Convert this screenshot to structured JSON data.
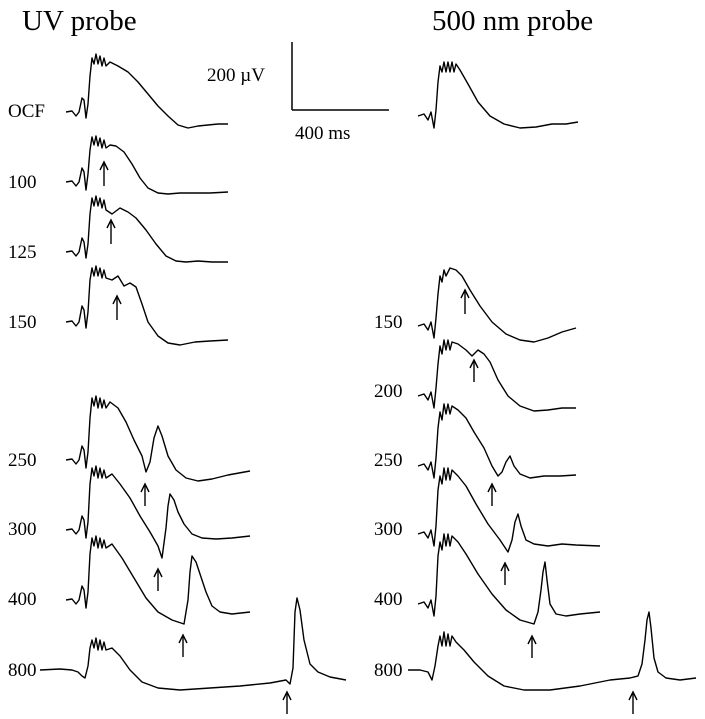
{
  "titles": {
    "uv": "UV probe",
    "green": "500 nm probe"
  },
  "scale_bar": {
    "voltage": "200 µV",
    "time": "400 ms"
  },
  "uv_panel": {
    "rows": [
      {
        "label": "OCF"
      },
      {
        "label": "100"
      },
      {
        "label": "125"
      },
      {
        "label": "150"
      },
      {
        "label": "250"
      },
      {
        "label": "300"
      },
      {
        "label": "400"
      },
      {
        "label": "800"
      }
    ]
  },
  "green_panel": {
    "rows": [
      {
        "label": ""
      },
      {
        "label": "150"
      },
      {
        "label": "200"
      },
      {
        "label": "250"
      },
      {
        "label": "300"
      },
      {
        "label": "400"
      },
      {
        "label": "800"
      }
    ]
  }
}
